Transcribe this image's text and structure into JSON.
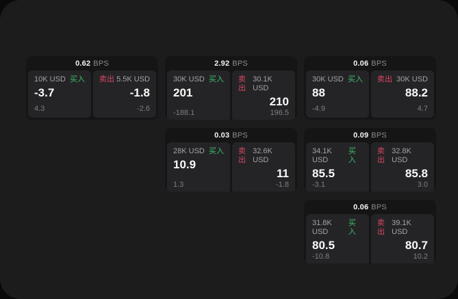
{
  "page": {
    "outer_bg": "#0a0a0a",
    "surface_bg": "#1c1c1d",
    "card_bg": "#151516",
    "panel_bg": "#242427",
    "accent_green": "#3fbd6a",
    "accent_red": "#d84760"
  },
  "labels": {
    "bps_unit": "BPS",
    "buy": "买入",
    "sell": "卖出"
  },
  "cards": [
    {
      "bps": "0.62",
      "buy": {
        "amount": "10K USD",
        "price": "-3.7",
        "delta": "4.3"
      },
      "sell": {
        "amount": "5.5K USD",
        "price": "-1.8",
        "delta": "-2.6"
      }
    },
    {
      "bps": "2.92",
      "buy": {
        "amount": "30K USD",
        "price": "201",
        "delta": "-188.1"
      },
      "sell": {
        "amount": "30.1K USD",
        "price": "210",
        "delta": "196.5"
      }
    },
    {
      "bps": "0.06",
      "buy": {
        "amount": "30K USD",
        "price": "88",
        "delta": "-4.9"
      },
      "sell": {
        "amount": "30K USD",
        "price": "88.2",
        "delta": "4.7"
      }
    },
    {
      "bps": "0.03",
      "buy": {
        "amount": "28K USD",
        "price": "10.9",
        "delta": "1.3"
      },
      "sell": {
        "amount": "32.6K USD",
        "price": "11",
        "delta": "-1.8"
      }
    },
    {
      "bps": "0.09",
      "buy": {
        "amount": "34.1K USD",
        "price": "85.5",
        "delta": "-3.1"
      },
      "sell": {
        "amount": "32.8K USD",
        "price": "85.8",
        "delta": "3.0"
      }
    },
    {
      "bps": "0.06",
      "buy": {
        "amount": "31.8K USD",
        "price": "80.5",
        "delta": "-10.8"
      },
      "sell": {
        "amount": "39.1K USD",
        "price": "80.7",
        "delta": "10.2"
      }
    }
  ]
}
